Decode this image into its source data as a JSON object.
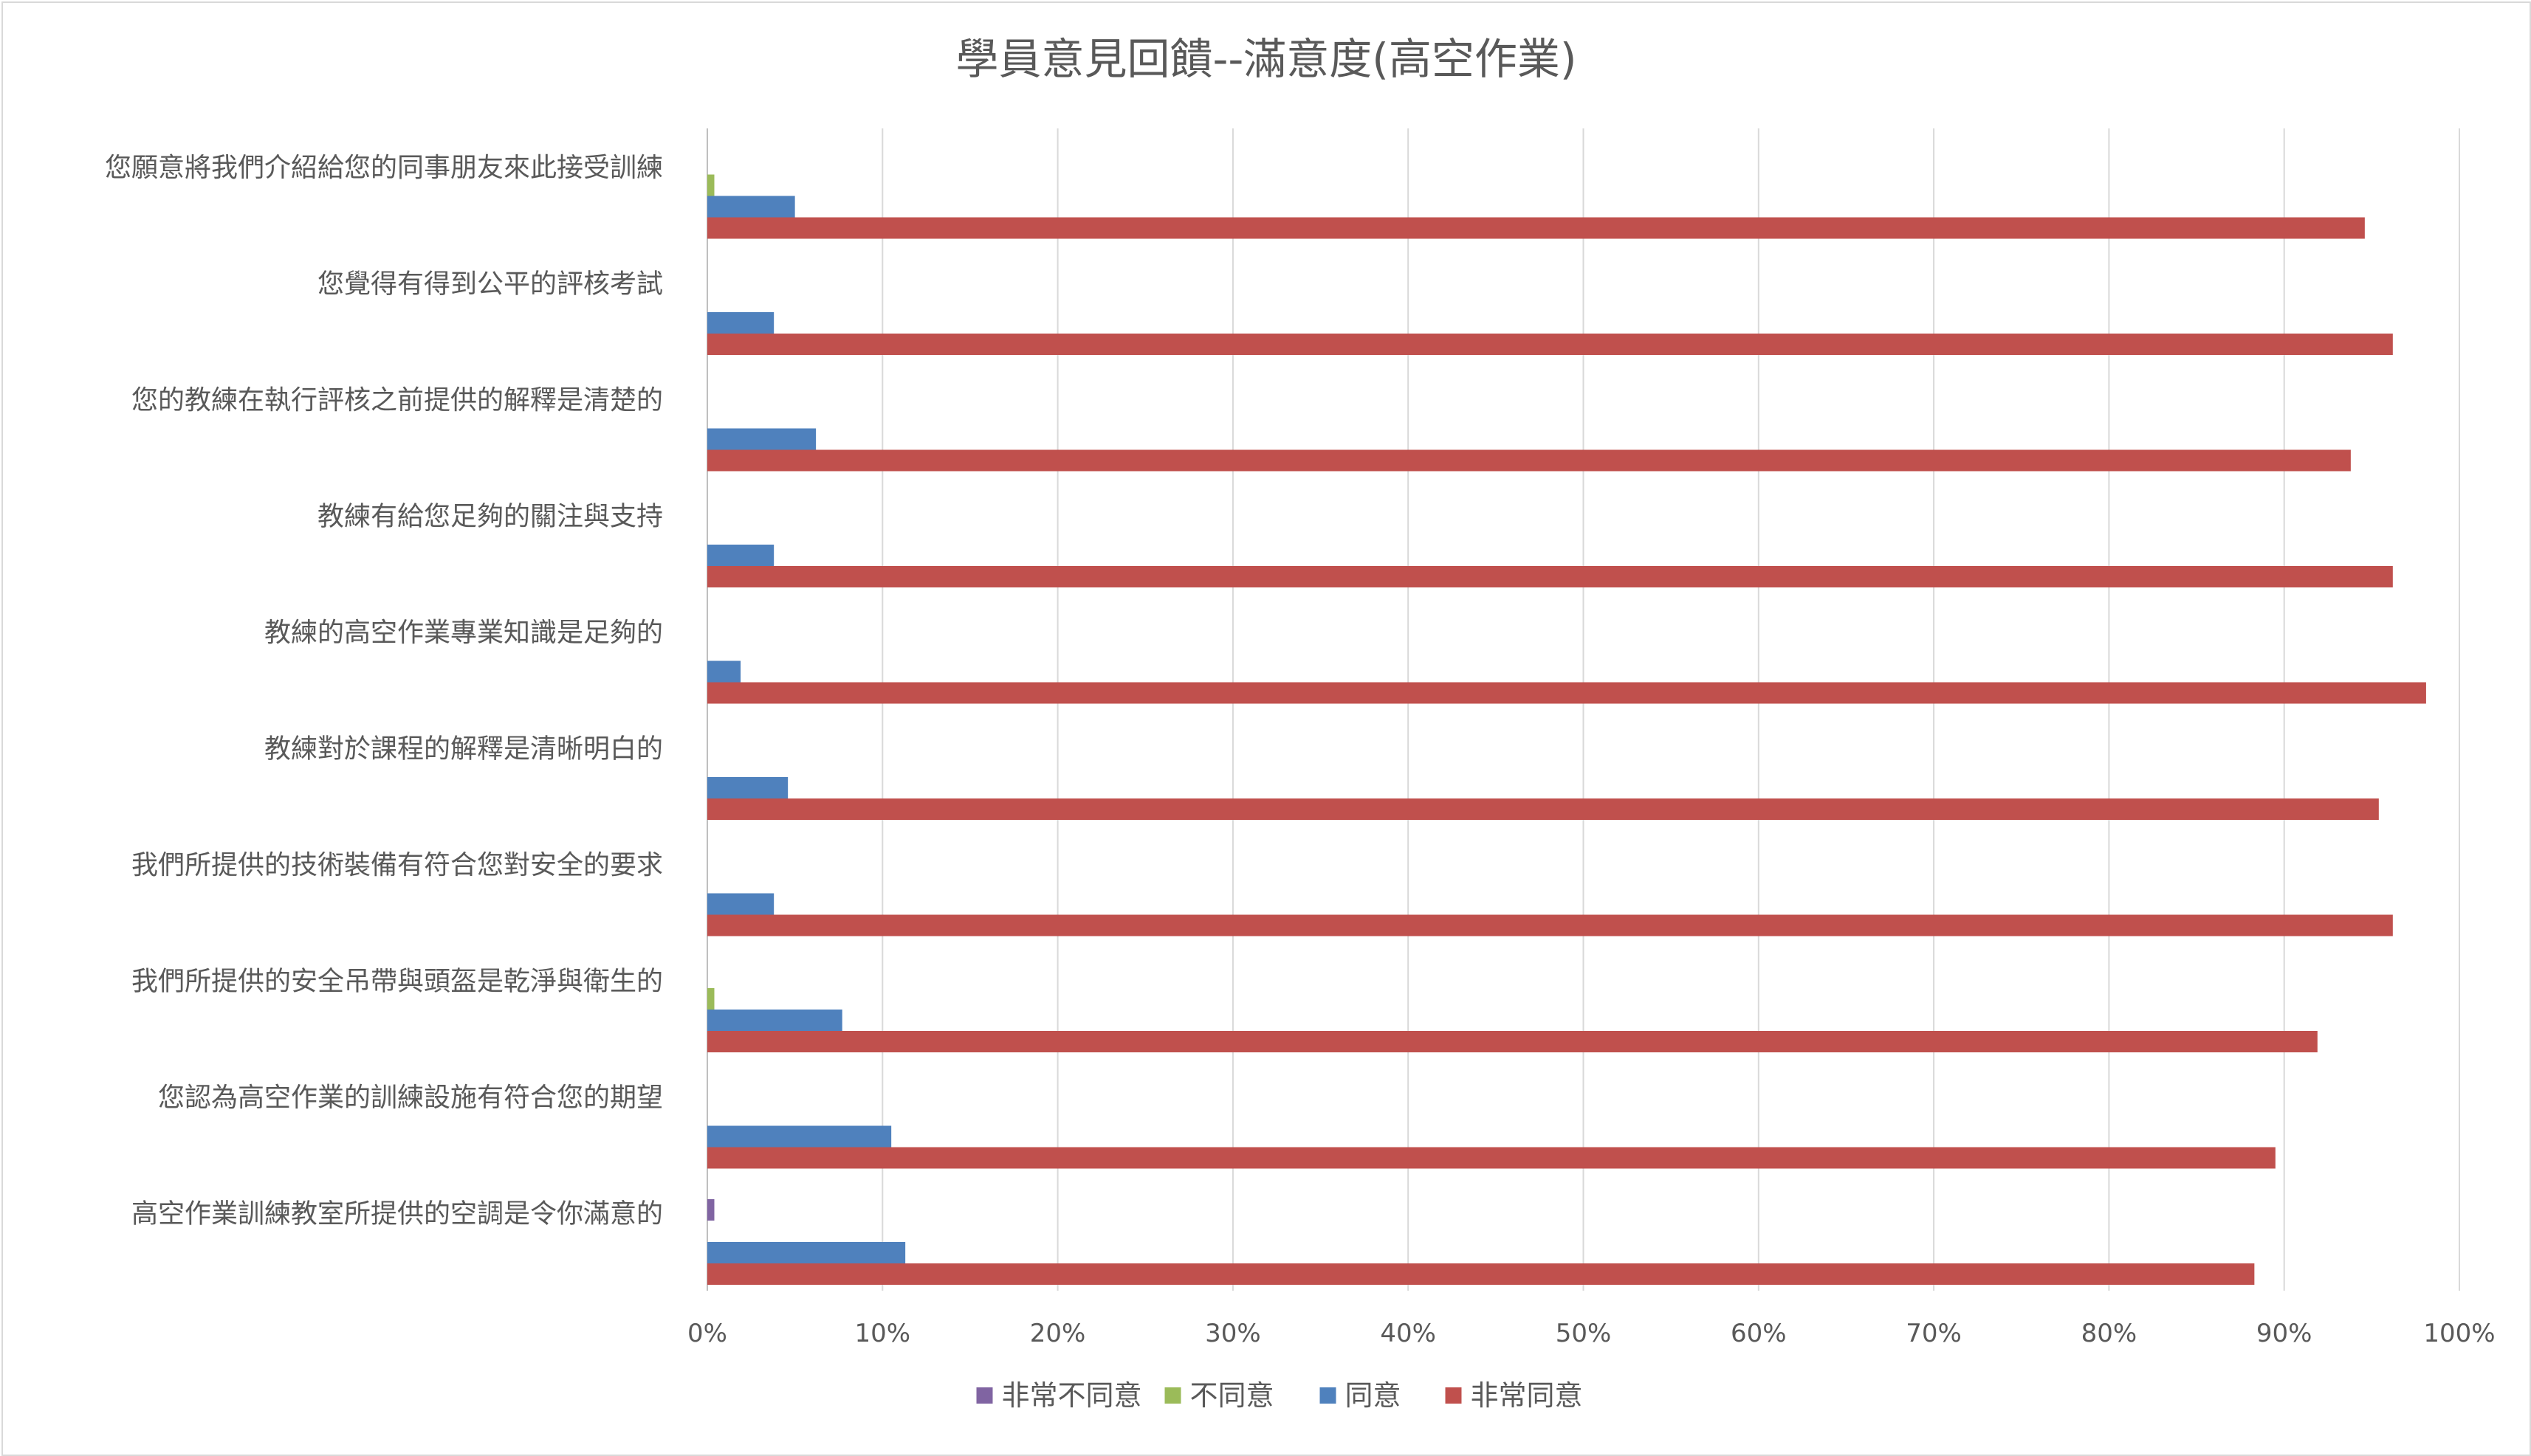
{
  "chart_data": {
    "type": "bar",
    "orientation": "horizontal",
    "title": "學員意見回饋--滿意度(高空作業)",
    "xlabel": "",
    "ylabel": "",
    "xlim": [
      0,
      1
    ],
    "x_ticks": [
      "0%",
      "10%",
      "20%",
      "30%",
      "40%",
      "50%",
      "60%",
      "70%",
      "80%",
      "90%",
      "100%"
    ],
    "grid": true,
    "legend_position": "bottom",
    "categories": [
      "您願意將我們介紹給您的同事朋友來此接受訓練",
      "您覺得有得到公平的評核考試",
      "您的教練在執行評核之前提供的解釋是清楚的",
      "教練有給您足夠的關注與支持",
      "教練的高空作業專業知識是足夠的",
      "教練對於課程的解釋是清晰明白的",
      "我們所提供的技術裝備有符合您對安全的要求",
      "我們所提供的安全吊帶與頭盔是乾淨與衛生的",
      "您認為高空作業的訓練設施有符合您的期望",
      "高空作業訓練教室所提供的空調是令你滿意的"
    ],
    "series": [
      {
        "name": "非常不同意",
        "color": "#8064a2",
        "values": [
          0,
          0,
          0,
          0,
          0,
          0,
          0,
          0,
          0,
          0.004
        ]
      },
      {
        "name": "不同意",
        "color": "#9bbb59",
        "values": [
          0.004,
          0,
          0,
          0,
          0,
          0,
          0,
          0.004,
          0,
          0
        ]
      },
      {
        "name": "同意",
        "color": "#4f81bd",
        "values": [
          0.05,
          0.038,
          0.062,
          0.038,
          0.019,
          0.046,
          0.038,
          0.077,
          0.105,
          0.113
        ]
      },
      {
        "name": "非常同意",
        "color": "#c0504d",
        "values": [
          0.946,
          0.962,
          0.938,
          0.962,
          0.981,
          0.954,
          0.962,
          0.919,
          0.895,
          0.883
        ]
      }
    ]
  }
}
